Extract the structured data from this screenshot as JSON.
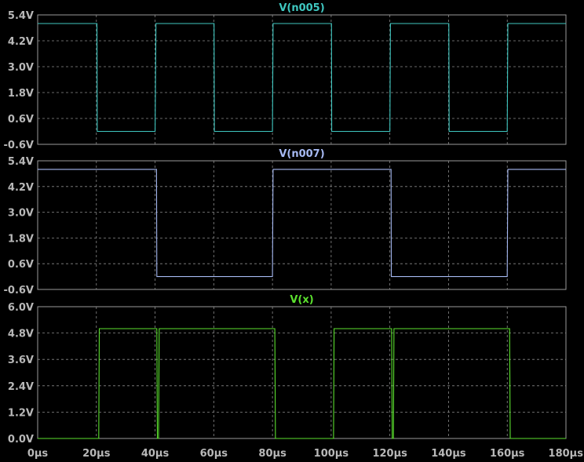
{
  "chart_data": [
    {
      "type": "line",
      "title": "V(n005)",
      "color": "#3fc7c0",
      "ylim": [
        -0.6,
        5.4
      ],
      "yticks": [
        "5.4V",
        "4.2V",
        "3.0V",
        "1.8V",
        "0.6V",
        "-0.6V"
      ],
      "x": [
        0,
        20.2,
        20.3,
        40,
        40.3,
        60.1,
        60.2,
        80,
        80.2,
        100.1,
        100.2,
        120,
        120.2,
        140.1,
        140.2,
        160,
        160.2,
        180
      ],
      "y": [
        5.0,
        5.0,
        0.0,
        0.0,
        5.0,
        5.0,
        0.0,
        0.0,
        5.0,
        5.0,
        0.0,
        0.0,
        5.0,
        5.0,
        0.0,
        0.0,
        5.0,
        5.0
      ],
      "xunit": "µs"
    },
    {
      "type": "line",
      "title": "V(n007)",
      "color": "#a6b9f2",
      "ylim": [
        -0.6,
        5.4
      ],
      "yticks": [
        "5.4V",
        "4.2V",
        "3.0V",
        "1.8V",
        "0.6V",
        "-0.6V"
      ],
      "x": [
        0,
        40.5,
        40.6,
        80,
        80.2,
        120.4,
        120.5,
        160,
        160.2,
        180
      ],
      "y": [
        5.0,
        5.0,
        0.0,
        0.0,
        5.0,
        5.0,
        0.0,
        0.0,
        5.0,
        5.0
      ],
      "xunit": "µs"
    },
    {
      "type": "line",
      "title": "V(x)",
      "color": "#5be02e",
      "ylim": [
        0.0,
        6.0
      ],
      "yticks": [
        "6.0V",
        "4.8V",
        "3.6V",
        "2.4V",
        "1.2V",
        "0.0V"
      ],
      "x": [
        0,
        20.8,
        21.0,
        40.6,
        40.8,
        41.2,
        41.4,
        80.8,
        81.0,
        100.8,
        101.0,
        120.6,
        120.8,
        121.2,
        121.4,
        160.8,
        161.0,
        180
      ],
      "y": [
        0.0,
        0.0,
        5.0,
        5.0,
        0.0,
        0.0,
        5.0,
        5.0,
        0.0,
        0.0,
        5.0,
        5.0,
        0.0,
        0.0,
        5.0,
        5.0,
        0.0,
        0.0
      ],
      "xunit": "µs"
    }
  ],
  "xaxis": {
    "ticks": [
      "0µs",
      "20µs",
      "40µs",
      "60µs",
      "80µs",
      "100µs",
      "120µs",
      "140µs",
      "160µs",
      "180µs"
    ],
    "range": [
      0,
      180
    ]
  }
}
